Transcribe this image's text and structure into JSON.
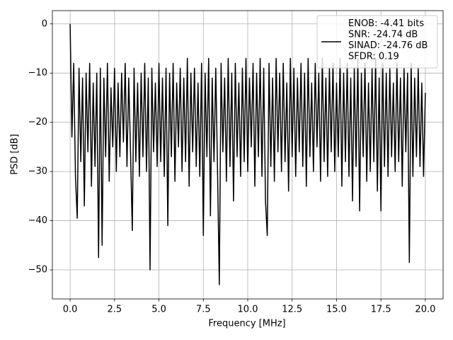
{
  "chart_data": {
    "type": "line",
    "xlabel": "Frequency [MHz]",
    "ylabel": "PSD [dB]",
    "x": [
      0,
      0.1,
      0.2,
      0.3,
      0.4,
      0.5,
      0.6,
      0.7,
      0.8,
      0.9,
      1,
      1.1,
      1.2,
      1.3,
      1.4,
      1.5,
      1.6,
      1.7,
      1.8,
      1.9,
      2,
      2.1,
      2.2,
      2.3,
      2.4,
      2.5,
      2.6,
      2.7,
      2.8,
      2.9,
      3,
      3.1,
      3.2,
      3.3,
      3.4,
      3.5,
      3.6,
      3.7,
      3.8,
      3.9,
      4,
      4.1,
      4.2,
      4.3,
      4.4,
      4.5,
      4.6,
      4.7,
      4.8,
      4.9,
      5,
      5.1,
      5.2,
      5.3,
      5.4,
      5.5,
      5.6,
      5.7,
      5.8,
      5.9,
      6,
      6.1,
      6.2,
      6.3,
      6.4,
      6.5,
      6.6,
      6.7,
      6.8,
      6.9,
      7,
      7.1,
      7.2,
      7.3,
      7.4,
      7.5,
      7.6,
      7.7,
      7.8,
      7.9,
      8,
      8.1,
      8.2,
      8.3,
      8.4,
      8.5,
      8.6,
      8.7,
      8.8,
      8.9,
      9,
      9.1,
      9.2,
      9.3,
      9.4,
      9.5,
      9.6,
      9.7,
      9.8,
      9.9,
      10,
      10.1,
      10.2,
      10.3,
      10.4,
      10.5,
      10.6,
      10.7,
      10.8,
      10.9,
      11,
      11.1,
      11.2,
      11.3,
      11.4,
      11.5,
      11.6,
      11.7,
      11.8,
      11.9,
      12,
      12.1,
      12.2,
      12.3,
      12.4,
      12.5,
      12.6,
      12.7,
      12.8,
      12.9,
      13,
      13.1,
      13.2,
      13.3,
      13.4,
      13.5,
      13.6,
      13.7,
      13.8,
      13.9,
      14,
      14.1,
      14.2,
      14.3,
      14.4,
      14.5,
      14.6,
      14.7,
      14.8,
      14.9,
      15,
      15.1,
      15.2,
      15.3,
      15.4,
      15.5,
      15.6,
      15.7,
      15.8,
      15.9,
      16,
      16.1,
      16.2,
      16.3,
      16.4,
      16.5,
      16.6,
      16.7,
      16.8,
      16.9,
      17,
      17.1,
      17.2,
      17.3,
      17.4,
      17.5,
      17.6,
      17.7,
      17.8,
      17.9,
      18,
      18.1,
      18.2,
      18.3,
      18.4,
      18.5,
      18.6,
      18.7,
      18.8,
      18.9,
      19,
      19.1,
      19.2,
      19.3,
      19.4,
      19.5,
      19.6,
      19.7,
      19.8,
      19.9,
      20
    ],
    "series": [
      {
        "name": "ENOB: -4.41 bits\nSNR: -24.74 dB\nSINAD: -24.76 dB\nSFDR: 0.19",
        "color": "#000000",
        "values": [
          0,
          -23,
          -8,
          -31,
          -39.5,
          -9,
          -28,
          -11,
          -37,
          -10,
          -26,
          -8,
          -33,
          -12,
          -29,
          -10,
          -47.5,
          -9,
          -45,
          -11,
          -27,
          -8,
          -32,
          -13,
          -25,
          -9,
          -30,
          -12,
          -27,
          -10,
          -24,
          -8,
          -29,
          -11,
          -26,
          -42,
          -9,
          -28,
          -12,
          -31,
          -10,
          -27,
          -8,
          -30,
          -11,
          -50,
          -9,
          -26,
          -12,
          -29,
          -8,
          -28,
          -11,
          -31,
          -9,
          -41,
          -10,
          -27,
          -8,
          -32,
          -12,
          -25,
          -9,
          -30,
          -11,
          -28,
          -7,
          -33,
          -10,
          -26,
          -9,
          -29,
          -12,
          -31,
          -8,
          -43,
          -10,
          -27,
          -7,
          -39,
          -11,
          -28,
          -9,
          -30,
          -53,
          -8,
          -26,
          -11,
          -32,
          -7,
          -29,
          -10,
          -36,
          -8,
          -27,
          -12,
          -31,
          -9,
          -28,
          -7,
          -30,
          -11,
          -25,
          -8,
          -33,
          -10,
          -27,
          -7,
          -31,
          -9,
          -36,
          -43,
          -8,
          -29,
          -11,
          -32,
          -7,
          -26,
          -10,
          -30,
          -8,
          -28,
          -12,
          -34,
          -7,
          -27,
          -9,
          -31,
          -11,
          -26,
          -8,
          -29,
          -10,
          -33,
          -7,
          -27,
          -12,
          -30,
          -8,
          -25,
          -10,
          -32,
          -7,
          -28,
          -11,
          -31,
          -9,
          -26,
          -8,
          -30,
          -12,
          -27,
          -7,
          -33,
          -10,
          -28,
          -8,
          -31,
          -11,
          -36,
          -9,
          -29,
          -7,
          -38,
          -10,
          -27,
          -8,
          -32,
          -12,
          -30,
          -9,
          -28,
          -7,
          -34,
          -11,
          -38,
          -8,
          -29,
          -10,
          -31,
          -9,
          -27,
          -12,
          -30,
          -8,
          -28,
          -11,
          -33,
          -9,
          -26,
          -10,
          -48.5,
          -8,
          -31,
          -11,
          -27,
          -9,
          -29,
          -12,
          -31,
          -14
        ]
      }
    ],
    "xlim": [
      -1.0,
      21.0
    ],
    "ylim": [
      -55.9,
      2.7
    ],
    "xticks": [
      {
        "value": 0,
        "label": "0.0"
      },
      2.5,
      {
        "value": 5,
        "label": "5.0"
      },
      7.5,
      {
        "value": 10,
        "label": "10.0"
      },
      12.5,
      {
        "value": 15,
        "label": "15.0"
      },
      17.5,
      {
        "value": 20,
        "label": "20.0"
      }
    ],
    "yticks": [
      0,
      {
        "value": -10,
        "label": "−10"
      },
      {
        "value": -20,
        "label": "−20"
      },
      {
        "value": -30,
        "label": "−30"
      },
      {
        "value": -40,
        "label": "−40"
      },
      {
        "value": -50,
        "label": "−50"
      }
    ],
    "grid": true,
    "legend": "upper right"
  }
}
